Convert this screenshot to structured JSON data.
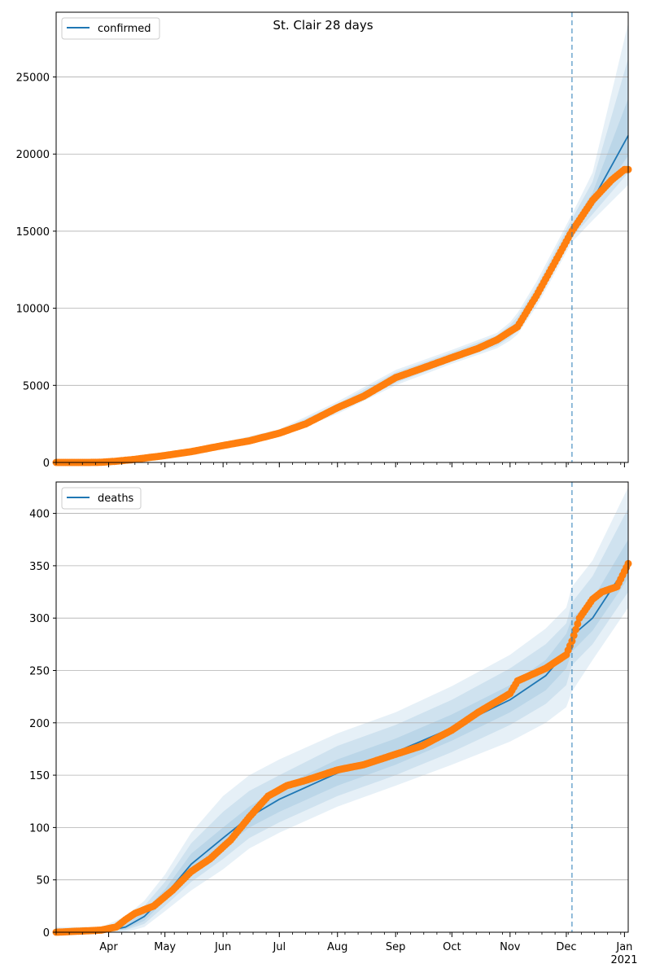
{
  "figure": {
    "title": "St. Clair 28 days"
  },
  "chart_data": [
    {
      "type": "line",
      "legend": [
        "confirmed"
      ],
      "legend_position": "top-left",
      "grid": "horizontal",
      "ylim": [
        0,
        29200
      ],
      "yticks": [
        0,
        5000,
        10000,
        15000,
        20000,
        25000
      ],
      "xlim": [
        "2020-03-04",
        "2021-01-03"
      ],
      "xticks": [
        {
          "date": "2020-04-01",
          "label": "Apr"
        },
        {
          "date": "2020-05-01",
          "label": "May"
        },
        {
          "date": "2020-06-01",
          "label": "Jun"
        },
        {
          "date": "2020-07-01",
          "label": "Jul"
        },
        {
          "date": "2020-08-01",
          "label": "Aug"
        },
        {
          "date": "2020-09-01",
          "label": "Sep"
        },
        {
          "date": "2020-10-01",
          "label": "Oct"
        },
        {
          "date": "2020-11-01",
          "label": "Nov"
        },
        {
          "date": "2020-12-01",
          "label": "Dec"
        },
        {
          "date": "2021-01-01",
          "label": "Jan"
        }
      ],
      "vline_date": "2020-12-04",
      "model_line": {
        "x": [
          "2020-03-04",
          "2020-03-28",
          "2020-04-15",
          "2020-05-01",
          "2020-06-01",
          "2020-07-01",
          "2020-08-01",
          "2020-09-01",
          "2020-10-01",
          "2020-10-25",
          "2020-11-01",
          "2020-11-05",
          "2020-11-15",
          "2020-11-25",
          "2020-12-04",
          "2020-12-15",
          "2021-01-03"
        ],
        "y": [
          0,
          30,
          200,
          450,
          1150,
          1900,
          3550,
          5500,
          6850,
          7900,
          8500,
          9000,
          10900,
          13100,
          15150,
          17000,
          21200
        ]
      },
      "bands": [
        {
          "lower": [
            0,
            0,
            150,
            380,
            1000,
            1650,
            3150,
            5000,
            6400,
            7400,
            7900,
            8300,
            10100,
            12300,
            14300,
            15700,
            18000
          ],
          "upper": [
            0,
            50,
            250,
            520,
            1300,
            2150,
            3950,
            6000,
            7300,
            8400,
            9100,
            9700,
            11700,
            14000,
            16100,
            18800,
            28500
          ]
        },
        {
          "lower": [
            0,
            10,
            170,
            410,
            1050,
            1750,
            3300,
            5150,
            6550,
            7550,
            8100,
            8550,
            10400,
            12600,
            14600,
            16100,
            18800
          ],
          "upper": [
            0,
            45,
            235,
            500,
            1250,
            2050,
            3800,
            5850,
            7150,
            8250,
            8900,
            9450,
            11400,
            13700,
            15800,
            18200,
            26200
          ]
        },
        {
          "lower": [
            0,
            20,
            180,
            430,
            1100,
            1820,
            3420,
            5320,
            6700,
            7700,
            8300,
            8780,
            10650,
            12850,
            14900,
            16550,
            19900
          ],
          "upper": [
            0,
            40,
            220,
            475,
            1200,
            1980,
            3680,
            5680,
            7000,
            8100,
            8700,
            9220,
            11150,
            13350,
            15400,
            17500,
            23600
          ]
        }
      ],
      "observed": {
        "x": [
          "2020-03-04",
          "2020-03-20",
          "2020-03-28",
          "2020-04-05",
          "2020-04-15",
          "2020-05-01",
          "2020-05-15",
          "2020-06-01",
          "2020-06-15",
          "2020-07-01",
          "2020-07-15",
          "2020-08-01",
          "2020-08-15",
          "2020-09-01",
          "2020-09-15",
          "2020-10-01",
          "2020-10-15",
          "2020-10-25",
          "2020-11-01",
          "2020-11-05",
          "2020-11-15",
          "2020-11-25",
          "2020-12-04",
          "2020-12-15",
          "2020-12-25",
          "2021-01-01",
          "2021-01-03"
        ],
        "y": [
          0,
          0,
          10,
          80,
          200,
          450,
          700,
          1100,
          1400,
          1900,
          2500,
          3550,
          4300,
          5500,
          6100,
          6800,
          7400,
          7950,
          8500,
          8800,
          10800,
          13000,
          15000,
          17000,
          18300,
          19000,
          19000
        ]
      }
    },
    {
      "type": "line",
      "legend": [
        "deaths"
      ],
      "legend_position": "top-left",
      "grid": "horizontal",
      "ylim": [
        0,
        430
      ],
      "yticks": [
        0,
        50,
        100,
        150,
        200,
        250,
        300,
        350,
        400
      ],
      "xlim": [
        "2020-03-04",
        "2021-01-03"
      ],
      "xticks": [
        {
          "date": "2020-04-01",
          "label": "Apr"
        },
        {
          "date": "2020-05-01",
          "label": "May"
        },
        {
          "date": "2020-06-01",
          "label": "Jun"
        },
        {
          "date": "2020-07-01",
          "label": "Jul"
        },
        {
          "date": "2020-08-01",
          "label": "Aug"
        },
        {
          "date": "2020-09-01",
          "label": "Sep"
        },
        {
          "date": "2020-10-01",
          "label": "Oct"
        },
        {
          "date": "2020-11-01",
          "label": "Nov"
        },
        {
          "date": "2020-12-01",
          "label": "Dec"
        },
        {
          "date": "2021-01-01",
          "label": "Jan"
        }
      ],
      "year_label": "2021",
      "vline_date": "2020-12-04",
      "model_line": {
        "x": [
          "2020-03-04",
          "2020-03-28",
          "2020-04-10",
          "2020-04-20",
          "2020-05-01",
          "2020-05-15",
          "2020-06-01",
          "2020-06-15",
          "2020-07-01",
          "2020-08-01",
          "2020-09-01",
          "2020-10-01",
          "2020-11-01",
          "2020-11-20",
          "2020-12-01",
          "2020-12-04",
          "2020-12-15",
          "2021-01-03"
        ],
        "y": [
          0,
          0,
          5,
          15,
          35,
          65,
          90,
          110,
          127,
          152,
          172,
          195,
          222,
          245,
          268,
          283,
          300,
          352
        ]
      },
      "bands": [
        {
          "lower": [
            0,
            0,
            0,
            5,
            20,
            40,
            60,
            80,
            95,
            120,
            140,
            160,
            182,
            200,
            215,
            230,
            260,
            310
          ],
          "upper": [
            5,
            5,
            15,
            30,
            55,
            95,
            130,
            150,
            165,
            190,
            210,
            235,
            265,
            290,
            310,
            330,
            355,
            425
          ]
        },
        {
          "lower": [
            0,
            0,
            2,
            8,
            25,
            48,
            70,
            90,
            105,
            130,
            150,
            172,
            198,
            218,
            236,
            255,
            275,
            325
          ],
          "upper": [
            3,
            3,
            10,
            25,
            48,
            85,
            115,
            135,
            150,
            178,
            198,
            222,
            252,
            275,
            295,
            315,
            340,
            405
          ]
        },
        {
          "lower": [
            0,
            0,
            3,
            11,
            30,
            55,
            80,
            100,
            115,
            140,
            160,
            183,
            210,
            231,
            252,
            268,
            288,
            338
          ],
          "upper": [
            1,
            1,
            7,
            20,
            41,
            75,
            100,
            120,
            138,
            165,
            185,
            208,
            236,
            260,
            285,
            300,
            318,
            375
          ]
        }
      ],
      "observed": {
        "x": [
          "2020-03-04",
          "2020-03-28",
          "2020-04-05",
          "2020-04-10",
          "2020-04-15",
          "2020-04-25",
          "2020-05-05",
          "2020-05-15",
          "2020-05-25",
          "2020-06-05",
          "2020-06-15",
          "2020-06-25",
          "2020-07-05",
          "2020-07-15",
          "2020-08-01",
          "2020-08-15",
          "2020-09-01",
          "2020-09-15",
          "2020-10-01",
          "2020-10-15",
          "2020-11-01",
          "2020-11-05",
          "2020-11-20",
          "2020-12-01",
          "2020-12-04",
          "2020-12-08",
          "2020-12-15",
          "2020-12-20",
          "2020-12-28",
          "2021-01-03"
        ],
        "y": [
          0,
          2,
          5,
          12,
          18,
          25,
          40,
          58,
          70,
          88,
          110,
          130,
          140,
          145,
          155,
          160,
          170,
          178,
          193,
          210,
          228,
          240,
          252,
          265,
          278,
          300,
          318,
          325,
          330,
          352
        ]
      }
    }
  ]
}
